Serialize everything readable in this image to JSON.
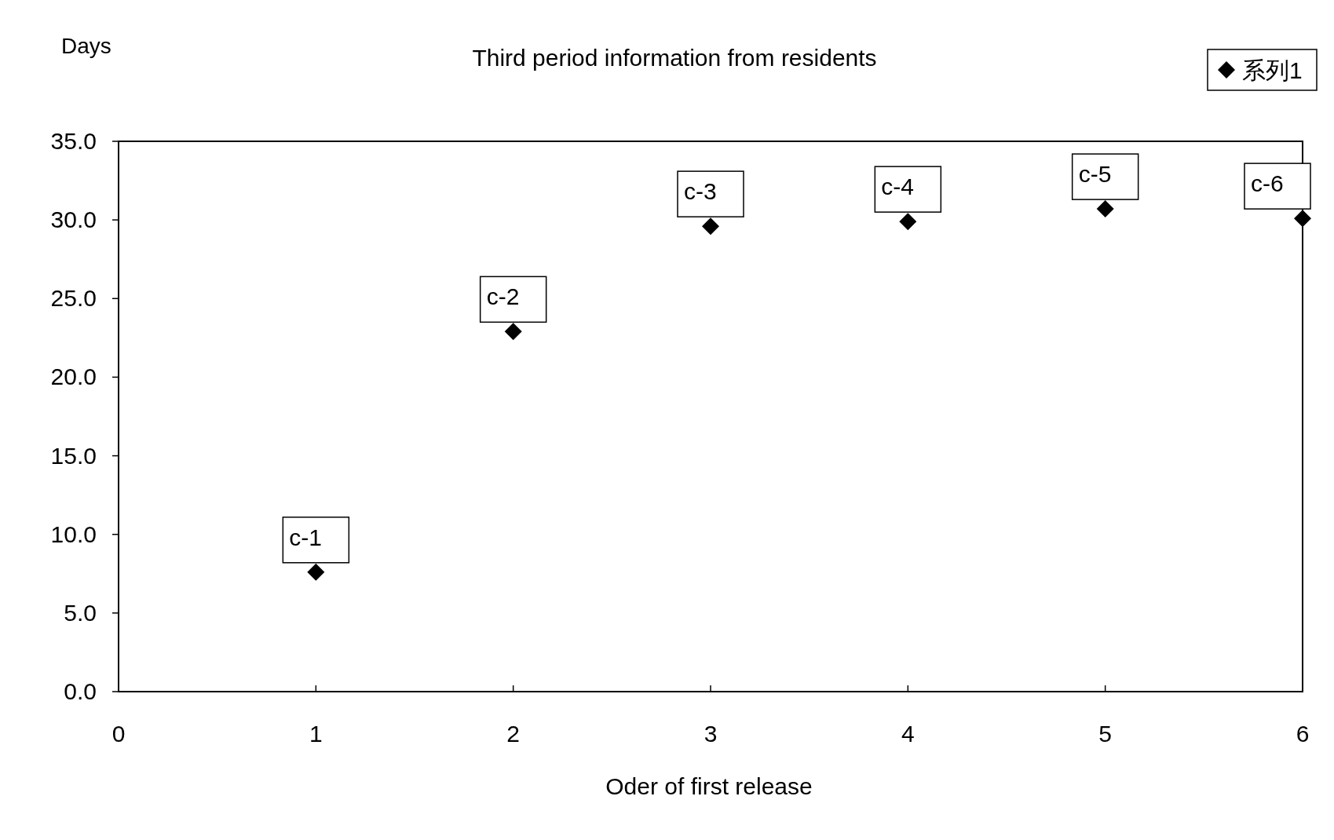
{
  "chart_data": {
    "type": "scatter",
    "title": "Third period information from residents",
    "xlabel": "Oder of first release",
    "ylabel": "Days",
    "x": [
      1,
      2,
      3,
      4,
      5,
      6
    ],
    "series": [
      {
        "name": "系列1",
        "color": "#000000",
        "values": [
          7.6,
          22.9,
          29.6,
          29.9,
          30.7,
          30.1
        ]
      }
    ],
    "xlim": [
      0,
      6
    ],
    "xticks": [
      0,
      1,
      2,
      3,
      4,
      5,
      6
    ],
    "ylim": [
      0,
      35
    ],
    "yticks": [
      {
        "value": 0,
        "label": "0.0"
      },
      {
        "value": 5,
        "label": "5.0"
      },
      {
        "value": 10,
        "label": "10.0"
      },
      {
        "value": 15,
        "label": "15.0"
      },
      {
        "value": 20,
        "label": "20.0"
      },
      {
        "value": 25,
        "label": "25.0"
      },
      {
        "value": 30,
        "label": "30.0"
      },
      {
        "value": 35,
        "label": "35.0"
      }
    ],
    "annotations": [
      {
        "text": "c-1",
        "x": 1,
        "y": 7.6
      },
      {
        "text": "c-2",
        "x": 2,
        "y": 22.9
      },
      {
        "text": "c-3",
        "x": 3,
        "y": 29.6
      },
      {
        "text": "c-4",
        "x": 4,
        "y": 29.9
      },
      {
        "text": "c-5",
        "x": 5,
        "y": 30.7
      },
      {
        "text": "c-6",
        "x": 6,
        "y": 30.1
      }
    ],
    "marker": "diamond",
    "grid": false,
    "legend": "top right"
  }
}
